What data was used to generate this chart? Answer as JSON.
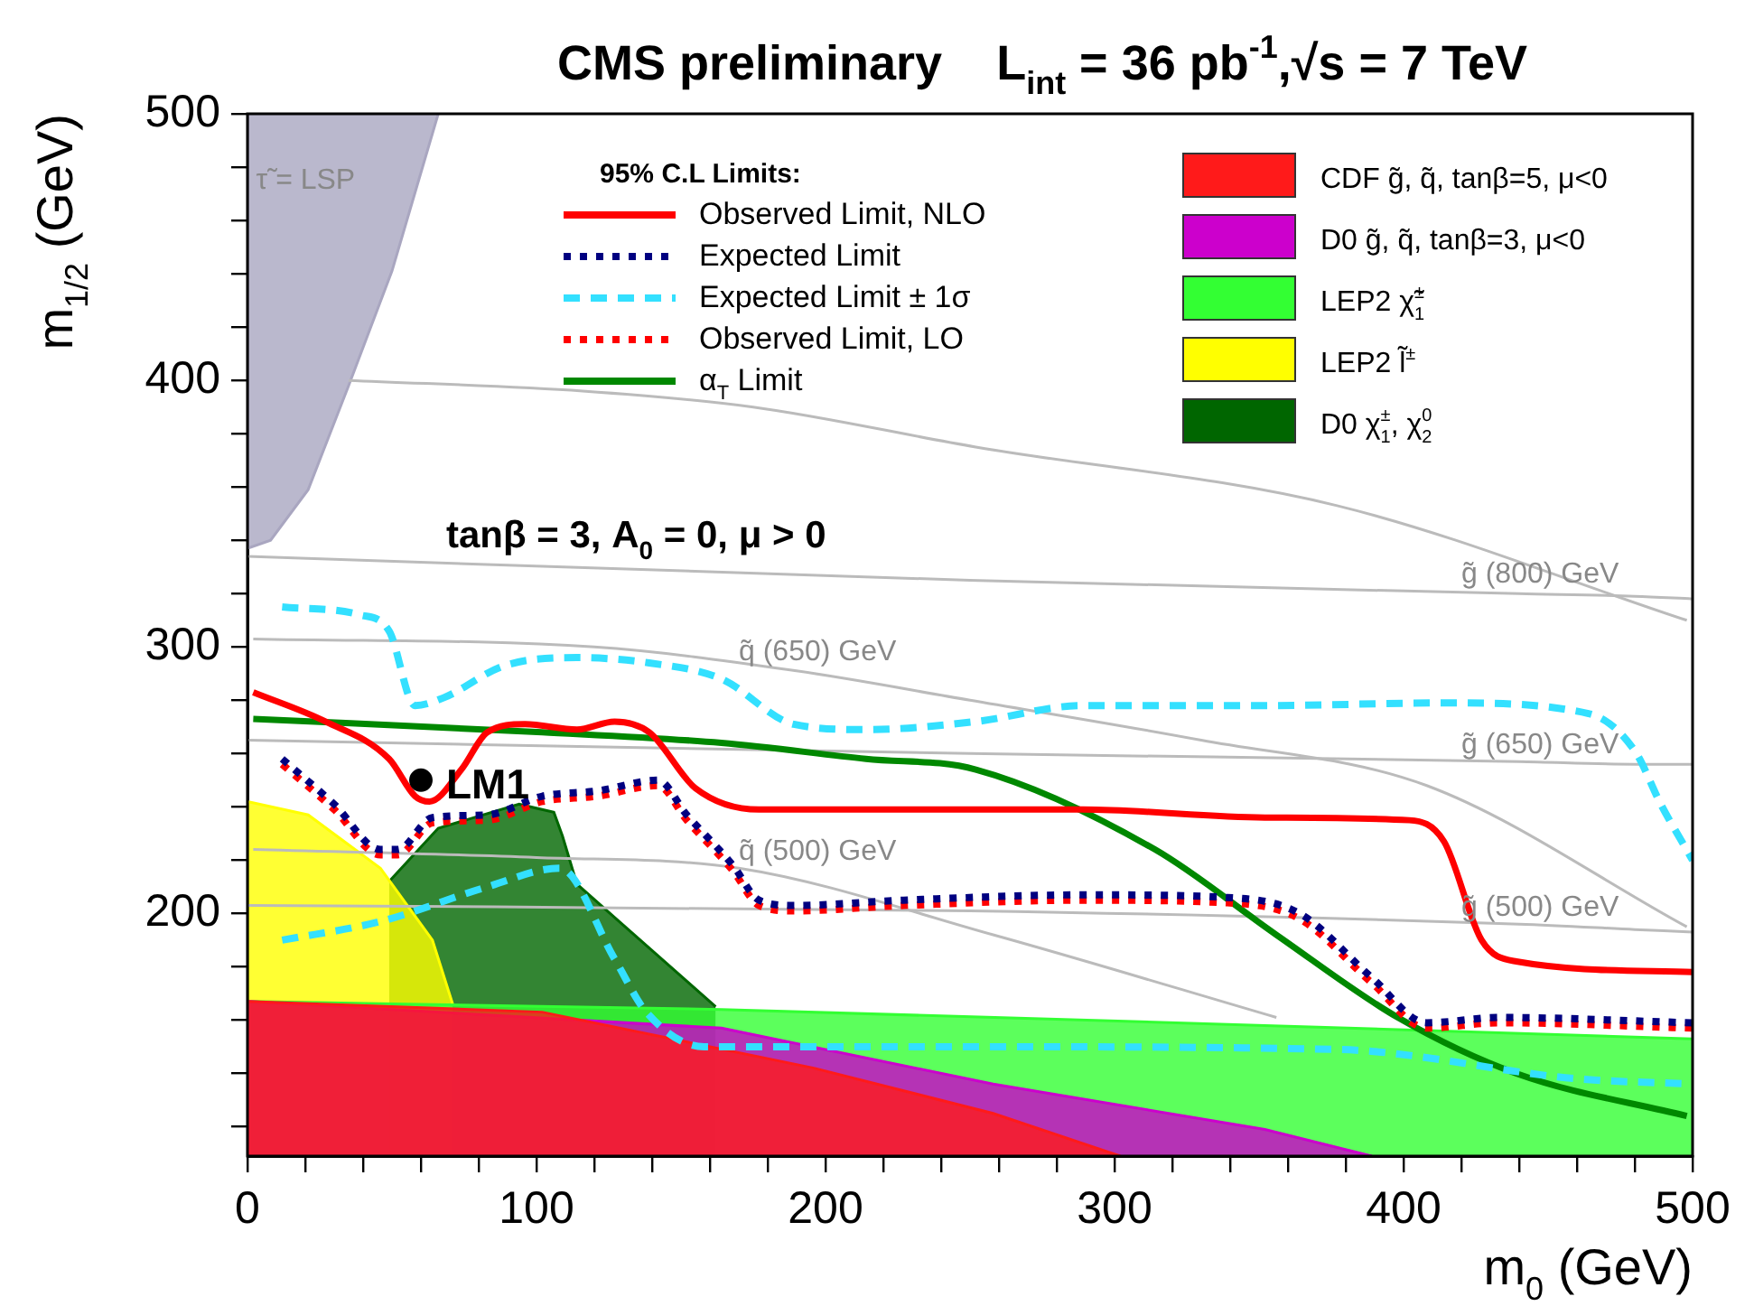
{
  "chart_data": {
    "type": "line",
    "title": "CMS preliminary    L$_{int}$ = 36 pb$^{-1}$,√s = 7 TeV",
    "xlabel": "m$_{0}$ (GeV)",
    "ylabel": "m$_{1/2}$ (GeV)",
    "legend_title": "95% C.L Limits:",
    "annotations": [
      "tanβ = 3, A$_{0}$ = 0, μ > 0",
      {
        "text": "g̃ (800) GeV",
        "x": 420,
        "y": 322
      },
      {
        "text": "q̃ (650) GeV",
        "x": 170,
        "y": 293
      },
      {
        "text": "g̃ (650) GeV",
        "x": 420,
        "y": 258
      },
      {
        "text": "q̃ (500) GeV",
        "x": 170,
        "y": 218
      },
      {
        "text": "g̃ (500) GeV",
        "x": 420,
        "y": 197
      },
      {
        "text": "τ̃ = LSP",
        "x": 3,
        "y": 470
      }
    ],
    "xlim": [
      0,
      500
    ],
    "ylim": [
      109,
      500
    ],
    "xticks": [
      0,
      {
        "value": 20,
        "label": null
      },
      {
        "value": 40,
        "label": null
      },
      {
        "value": 60,
        "label": null
      },
      {
        "value": 80,
        "label": null
      },
      100,
      {
        "value": 120,
        "label": null
      },
      {
        "value": 140,
        "label": null
      },
      {
        "value": 160,
        "label": null
      },
      {
        "value": 180,
        "label": null
      },
      200,
      {
        "value": 220,
        "label": null
      },
      {
        "value": 240,
        "label": null
      },
      {
        "value": 260,
        "label": null
      },
      {
        "value": 280,
        "label": null
      },
      300,
      {
        "value": 320,
        "label": null
      },
      {
        "value": 340,
        "label": null
      },
      {
        "value": 360,
        "label": null
      },
      {
        "value": 380,
        "label": null
      },
      400,
      {
        "value": 420,
        "label": null
      },
      {
        "value": 440,
        "label": null
      },
      {
        "value": 460,
        "label": null
      },
      {
        "value": 480,
        "label": null
      },
      500
    ],
    "yticks": [
      {
        "value": 120,
        "label": null
      },
      {
        "value": 140,
        "label": null
      },
      {
        "value": 160,
        "label": null
      },
      {
        "value": 180,
        "label": null
      },
      200,
      {
        "value": 220,
        "label": null
      },
      {
        "value": 240,
        "label": null
      },
      {
        "value": 260,
        "label": null
      },
      {
        "value": 280,
        "label": null
      },
      300,
      {
        "value": 320,
        "label": null
      },
      {
        "value": 340,
        "label": null
      },
      {
        "value": 360,
        "label": null
      },
      {
        "value": 380,
        "label": null
      },
      400,
      {
        "value": 420,
        "label": null
      },
      {
        "value": 440,
        "label": null
      },
      {
        "value": 460,
        "label": null
      },
      {
        "value": 480,
        "label": null
      },
      500
    ],
    "grid": false,
    "legend": "top",
    "series": [
      {
        "type": "scatter",
        "name": "LM1",
        "color": "#000000",
        "x": [
          60
        ],
        "values": [
          250
        ]
      },
      {
        "name": "Observed Limit, NLO",
        "color": "#ff0000",
        "line_style": "solid",
        "x": [
          2,
          27,
          49,
          58,
          63,
          74,
          83,
          96,
          114,
          127,
          139,
          155,
          177,
          227,
          289,
          352,
          402,
          414,
          427,
          439,
          500
        ],
        "values": [
          283,
          272,
          258,
          244,
          242,
          254,
          268,
          271,
          269,
          272,
          268,
          247,
          239,
          239,
          239,
          236,
          235,
          227,
          190,
          182,
          178
        ]
      },
      {
        "name": "Expected Limit",
        "color": "#000080",
        "line_style": "dotted",
        "x": [
          12,
          30,
          46,
          52,
          64,
          83,
          102,
          121,
          142,
          152,
          168,
          177,
          189,
          227,
          289,
          339,
          364,
          389,
          408,
          433,
          500
        ],
        "values": [
          258,
          241,
          224,
          224,
          236,
          237,
          244,
          246,
          250,
          237,
          218,
          205,
          203,
          205,
          207,
          206,
          200,
          176,
          159,
          161,
          159
        ]
      },
      {
        "name": "Expected Limit ± 1σ",
        "color": "#33e0ff",
        "line_style": "dashed",
        "x": [
          12,
          39,
          49,
          58,
          68,
          89,
          114,
          139,
          164,
          189,
          214,
          252,
          289,
          352,
          414,
          464,
          480,
          489,
          500
        ],
        "values": [
          315,
          312,
          306,
          278,
          281,
          293,
          296,
          294,
          288,
          271,
          269,
          272,
          278,
          278,
          279,
          275,
          261,
          241,
          220
        ]
      },
      {
        "color": "#33e0ff",
        "line_style": "dashed",
        "x": [
          12,
          46,
          83,
          108,
          127,
          138,
          158,
          252,
          377,
          460,
          500
        ],
        "values": [
          190,
          197,
          210,
          217,
          183,
          163,
          150,
          150,
          149,
          138,
          136
        ]
      },
      {
        "name": "Observed Limit, LO",
        "color": "#ff0000",
        "line_style": "dotted",
        "x": [
          12,
          30,
          46,
          52,
          64,
          83,
          102,
          121,
          142,
          152,
          168,
          177,
          189,
          227,
          289,
          339,
          364,
          389,
          408,
          433,
          500
        ],
        "values": [
          256,
          239,
          222,
          222,
          234,
          235,
          242,
          244,
          248,
          235,
          216,
          203,
          201,
          203,
          205,
          204,
          198,
          174,
          157,
          159,
          157
        ]
      },
      {
        "name": "α$_{T}$ Limit",
        "color": "#008800",
        "line_style": "solid",
        "x": [
          2,
          102,
          164,
          214,
          252,
          314,
          356,
          398,
          439,
          498
        ],
        "values": [
          273,
          268,
          264,
          258,
          254,
          224,
          192,
          161,
          140,
          124
        ]
      },
      {
        "color": "#bbbbbb",
        "line_style": "solid",
        "x": [
          35,
          116,
          175,
          252,
          377,
          498
        ],
        "values": [
          400,
          396,
          390,
          375,
          353,
          310
        ]
      },
      {
        "color": "#bbbbbb",
        "line_style": "solid",
        "x": [
          0,
          250,
          440,
          480,
          500
        ],
        "values": [
          334,
          325,
          320,
          319,
          318
        ]
      },
      {
        "color": "#bbbbbb",
        "line_style": "solid",
        "x": [
          2,
          120,
          190,
          250,
          330,
          408,
          498
        ],
        "values": [
          303,
          300,
          291,
          280,
          265,
          248,
          195
        ]
      },
      {
        "color": "#bbbbbb",
        "line_style": "solid",
        "x": [
          0,
          250,
          440,
          480,
          500
        ],
        "values": [
          265,
          260,
          257,
          256,
          256
        ]
      },
      {
        "color": "#bbbbbb",
        "line_style": "solid",
        "x": [
          2,
          100,
          170,
          258,
          356
        ],
        "values": [
          224,
          221,
          217,
          192,
          161
        ]
      },
      {
        "color": "#bbbbbb",
        "line_style": "solid",
        "x": [
          0,
          250,
          440,
          480,
          500
        ],
        "values": [
          203,
          201,
          196,
          194,
          193
        ]
      },
      {
        "type": "area",
        "name": "CDF g̃, q̃, tanβ=5, μ<0",
        "color": "#ff1a1a",
        "x": [
          0,
          102,
          196,
          258,
          302
        ],
        "values": [
          167,
          163,
          142,
          125,
          109
        ]
      },
      {
        "type": "area",
        "name": "D0 g̃, q̃, tanβ=3, μ<0",
        "color": "#cc00cc",
        "x": [
          0,
          164,
          258,
          352,
          389
        ],
        "values": [
          167,
          157,
          136,
          119,
          109
        ]
      },
      {
        "type": "area",
        "name": "LEP2 χ̃$_{1}$$^{±}$",
        "color": "#33ff33",
        "x": [
          0,
          164,
          352,
          500
        ],
        "values": [
          167,
          164,
          158,
          153
        ]
      },
      {
        "type": "area",
        "name": "LEP2 l̃$^{±}$",
        "color": "#ffff00",
        "x": [
          0,
          21,
          46,
          64,
          71
        ],
        "values": [
          242,
          237,
          217,
          190,
          166
        ]
      },
      {
        "type": "area",
        "name": "D0 χ$_{1}$$^{±}$, χ$_{2}$$^{0}$",
        "color": "#006600",
        "x": [
          49,
          66,
          94,
          106,
          109,
          114,
          162
        ],
        "values": [
          212,
          232,
          241,
          238,
          229,
          211,
          165
        ]
      },
      {
        "type": "area",
        "color": "#a9a6c0",
        "x": [
          0,
          0,
          8,
          21,
          35,
          50,
          66
        ],
        "values": [
          500,
          337,
          340,
          359,
          398,
          441,
          500
        ]
      }
    ]
  }
}
